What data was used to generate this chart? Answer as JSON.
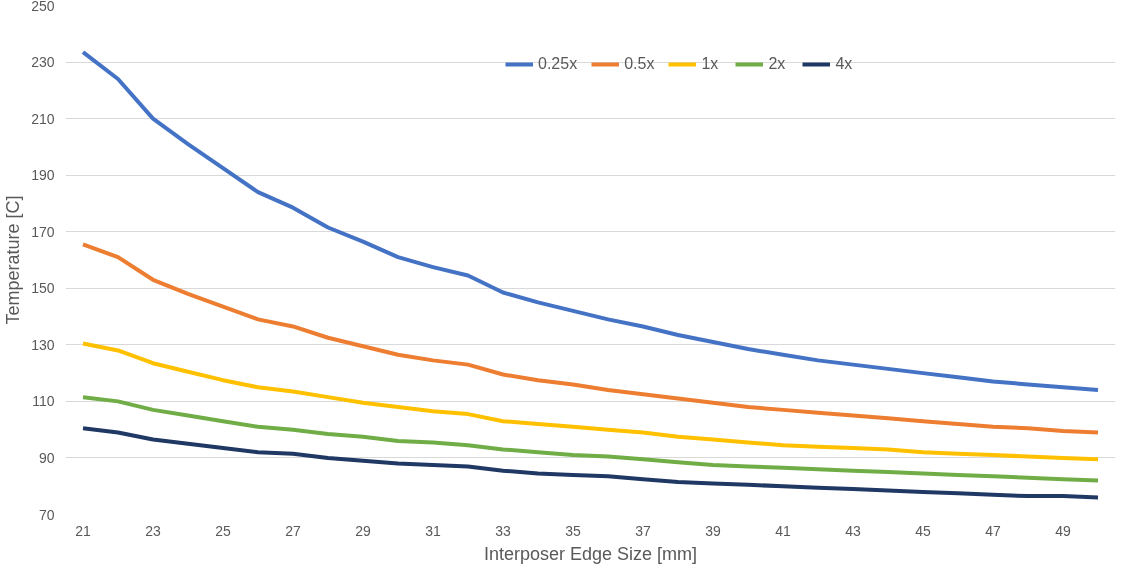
{
  "chart_data": {
    "type": "line",
    "xlabel": "Interposer Edge Size [mm]",
    "ylabel": "Temperature [C]",
    "x": [
      21,
      22,
      23,
      24,
      25,
      26,
      27,
      28,
      29,
      30,
      31,
      32,
      33,
      34,
      35,
      36,
      37,
      38,
      39,
      40,
      41,
      42,
      43,
      44,
      45,
      46,
      47,
      48,
      49,
      50
    ],
    "series": [
      {
        "name": "0.25x",
        "color": "#4472c4",
        "values": [
          233.5,
          224,
          210,
          201,
          192.5,
          184,
          178.5,
          171.5,
          166.5,
          161,
          157.5,
          154.5,
          148.5,
          145,
          142,
          139,
          136.5,
          133.5,
          131,
          128.5,
          126.5,
          124.5,
          123,
          121.5,
          120,
          118.5,
          117,
          116,
          115,
          114
        ]
      },
      {
        "name": "0.5x",
        "color": "#ed7d31",
        "values": [
          165.5,
          161,
          153,
          148,
          143.5,
          139,
          136.5,
          132.5,
          129.5,
          126.5,
          124.5,
          123,
          119.5,
          117.5,
          116,
          114,
          112.5,
          111,
          109.5,
          108,
          107,
          106,
          105,
          104,
          103,
          102,
          101,
          100.5,
          99.5,
          99
        ]
      },
      {
        "name": "1x",
        "color": "#ffc000",
        "values": [
          130.5,
          128,
          123.5,
          120.5,
          117.5,
          115,
          113.5,
          111.5,
          109.5,
          108,
          106.5,
          105.5,
          103,
          102,
          101,
          100,
          99,
          97.5,
          96.5,
          95.5,
          94.5,
          94,
          93.5,
          93,
          92,
          91.5,
          91,
          90.5,
          90,
          89.5
        ]
      },
      {
        "name": "2x",
        "color": "#70ad47",
        "values": [
          111.5,
          110,
          107,
          105,
          103,
          101,
          100,
          98.5,
          97.5,
          96,
          95.5,
          94.5,
          93,
          92,
          91,
          90.5,
          89.5,
          88.5,
          87.5,
          87,
          86.5,
          86,
          85.5,
          85,
          84.5,
          84,
          83.5,
          83,
          82.5,
          82
        ]
      },
      {
        "name": "4x",
        "color": "#203864",
        "values": [
          100.5,
          99,
          96.5,
          95,
          93.5,
          92,
          91.5,
          90,
          89,
          88,
          87.5,
          87,
          85.5,
          84.5,
          84,
          83.5,
          82.5,
          81.5,
          81,
          80.5,
          80,
          79.5,
          79,
          78.5,
          78,
          77.5,
          77,
          76.5,
          76.5,
          76
        ]
      }
    ],
    "xlim": [
      20.5,
      50.5
    ],
    "xticks": [
      21,
      23,
      25,
      27,
      29,
      31,
      33,
      35,
      37,
      39,
      41,
      43,
      45,
      47,
      49
    ],
    "ylim": [
      70,
      250
    ],
    "yticks": [
      70,
      90,
      110,
      130,
      150,
      170,
      190,
      210,
      230,
      250
    ],
    "grid": "y",
    "legend": "top right",
    "marker": "none",
    "line_style": "solid"
  }
}
